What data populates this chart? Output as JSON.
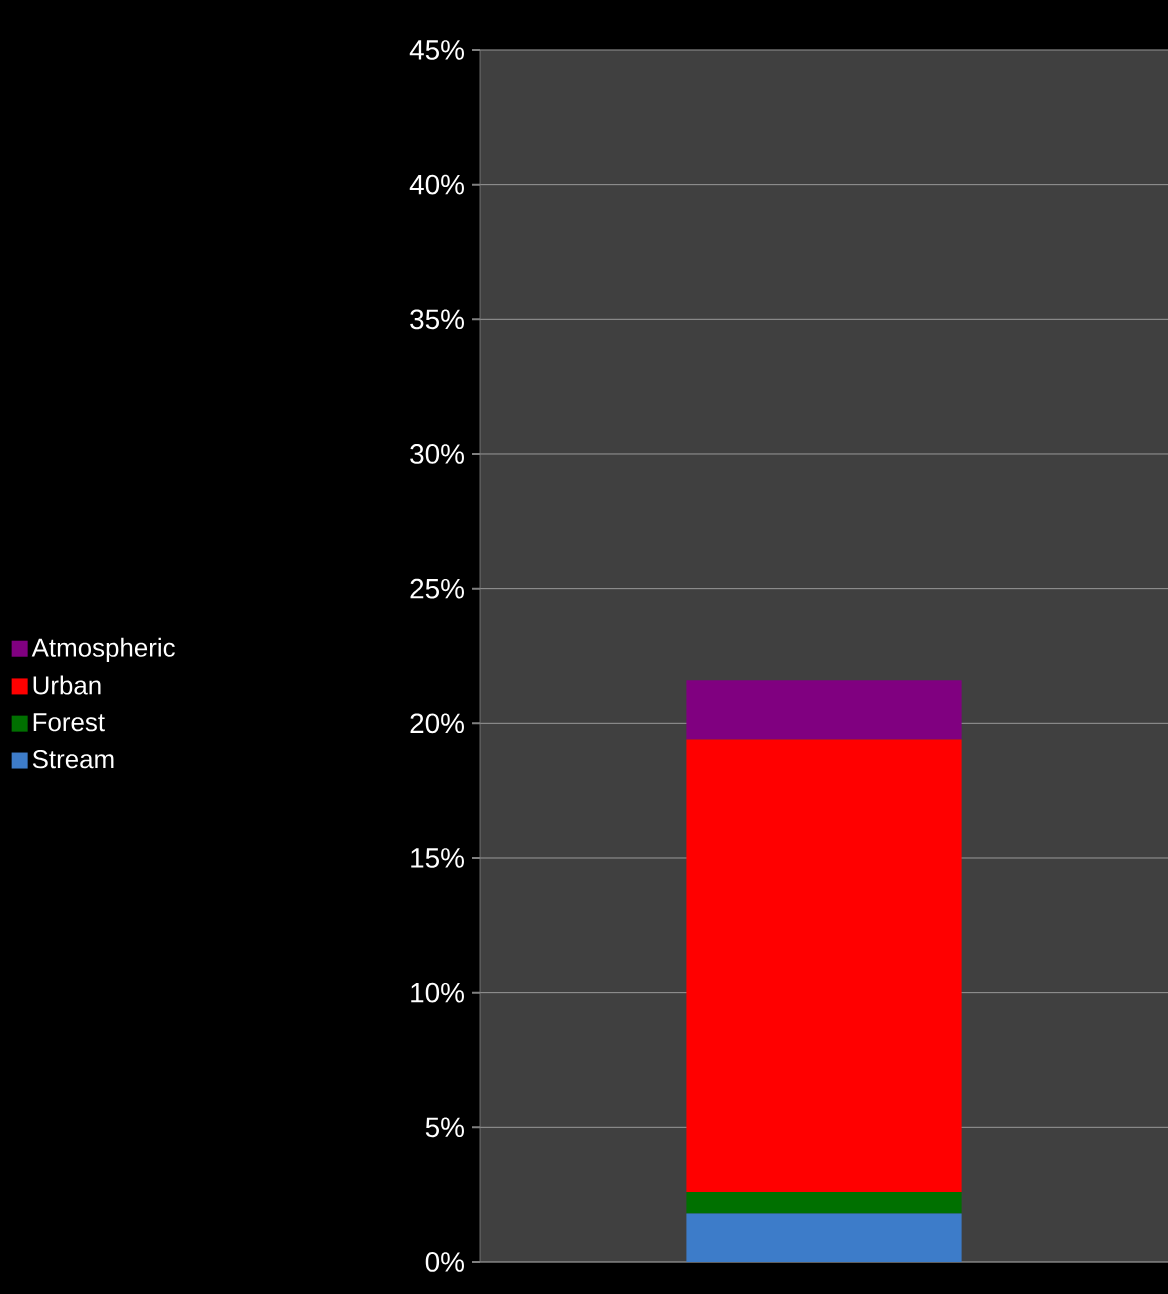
{
  "chart_data": {
    "type": "bar",
    "stacked": true,
    "categories": [
      null
    ],
    "series": [
      {
        "name": "Stream",
        "color": "#3d7cc9",
        "values": [
          1.8
        ]
      },
      {
        "name": "Forest",
        "color": "#007000",
        "values": [
          0.8
        ]
      },
      {
        "name": "Urban",
        "color": "#ff0000",
        "values": [
          16.8
        ]
      },
      {
        "name": "Atmospheric",
        "color": "#800080",
        "values": [
          2.2
        ]
      }
    ],
    "ylim": [
      0,
      45
    ],
    "yticks": [
      {
        "value": 0,
        "label": "0%"
      },
      {
        "value": 5,
        "label": "5%"
      },
      {
        "value": 10,
        "label": "10%"
      },
      {
        "value": 15,
        "label": "15%"
      },
      {
        "value": 20,
        "label": "20%"
      },
      {
        "value": 25,
        "label": "25%"
      },
      {
        "value": 30,
        "label": "30%"
      },
      {
        "value": 35,
        "label": "35%"
      },
      {
        "value": 40,
        "label": "40%"
      },
      {
        "value": 45,
        "label": "45%"
      }
    ],
    "grid": "y",
    "legend": "left"
  }
}
